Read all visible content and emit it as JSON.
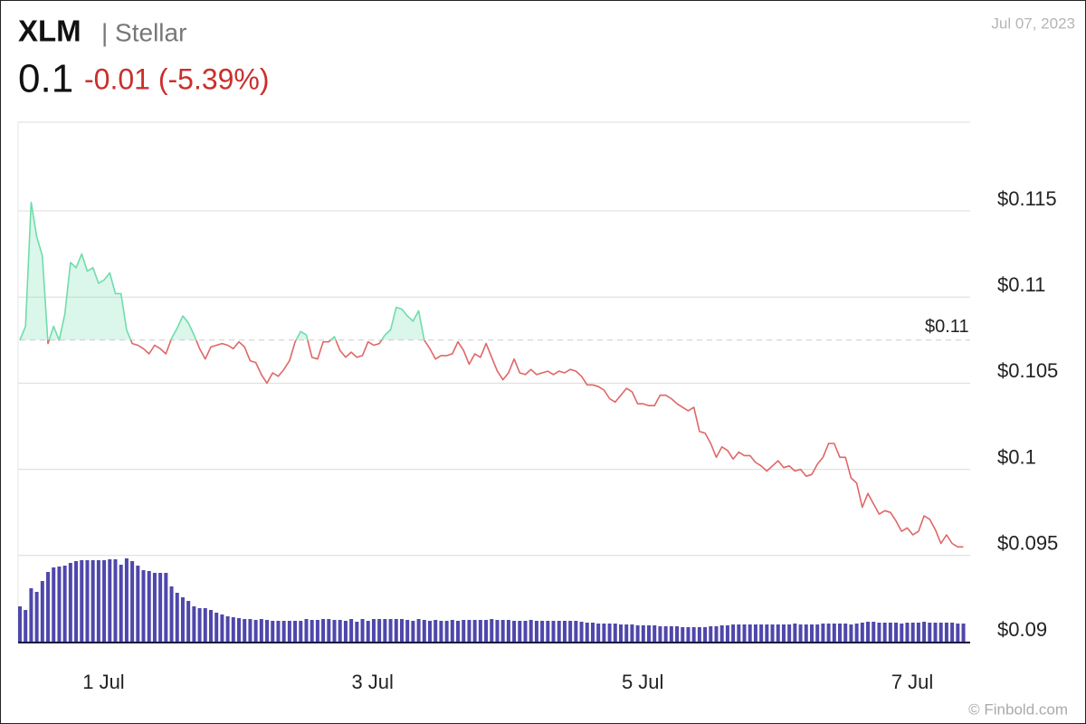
{
  "chart_data": {
    "type": "line",
    "title": "XLM",
    "subtitle": "| Stellar",
    "date": "Jul 07, 2023",
    "price": "0.1",
    "change": "-0.01 (-5.39%)",
    "watermark": "© Finbold.com",
    "up_color": "#6fdcab",
    "down_color": "#e06666",
    "volume_color": "#4f47ab",
    "reference": {
      "value": 0.1075,
      "label": "$0.11"
    },
    "ylim": [
      0.09,
      0.1202
    ],
    "yticks": [
      {
        "value": 0.09,
        "label": "$0.09"
      },
      {
        "value": 0.095,
        "label": "$0.095"
      },
      {
        "value": 0.1,
        "label": "$0.1"
      },
      {
        "value": 0.105,
        "label": "$0.105"
      },
      {
        "value": 0.11,
        "label": "$0.11"
      },
      {
        "value": 0.115,
        "label": "$0.115"
      }
    ],
    "xlim": [
      0,
      168.8
    ],
    "xticks": [
      {
        "value": 14.9,
        "label": "1 Jul"
      },
      {
        "value": 62.8,
        "label": "3 Jul"
      },
      {
        "value": 110.9,
        "label": "5 Jul"
      },
      {
        "value": 158.9,
        "label": "7 Jul"
      }
    ],
    "grid": true,
    "values": [
      0.1075,
      0.1083,
      0.1155,
      0.1135,
      0.1124,
      0.1073,
      0.1083,
      0.1075,
      0.109,
      0.112,
      0.1117,
      0.1125,
      0.1115,
      0.1117,
      0.1108,
      0.111,
      0.1114,
      0.1102,
      0.1102,
      0.1081,
      0.1073,
      0.1072,
      0.107,
      0.1067,
      0.1072,
      0.107,
      0.1067,
      0.1076,
      0.1082,
      0.1089,
      0.1085,
      0.1078,
      0.107,
      0.1064,
      0.1071,
      0.1072,
      0.1073,
      0.1072,
      0.107,
      0.1074,
      0.1071,
      0.1063,
      0.1062,
      0.1055,
      0.105,
      0.1056,
      0.1054,
      0.1058,
      0.1063,
      0.1074,
      0.108,
      0.1078,
      0.1065,
      0.1064,
      0.1074,
      0.1074,
      0.1077,
      0.1069,
      0.1065,
      0.1068,
      0.1065,
      0.1066,
      0.1074,
      0.1072,
      0.1073,
      0.1078,
      0.1081,
      0.1094,
      0.1093,
      0.1089,
      0.1086,
      0.1092,
      0.1075,
      0.107,
      0.1064,
      0.1066,
      0.1066,
      0.1067,
      0.1074,
      0.1069,
      0.1061,
      0.1067,
      0.1065,
      0.1073,
      0.1065,
      0.1057,
      0.1052,
      0.1056,
      0.1064,
      0.1056,
      0.1055,
      0.1058,
      0.1055,
      0.1056,
      0.1057,
      0.1055,
      0.1057,
      0.1056,
      0.1058,
      0.1057,
      0.1054,
      0.1049,
      0.1049,
      0.1048,
      0.1046,
      0.1041,
      0.1039,
      0.1043,
      0.1047,
      0.1045,
      0.1038,
      0.1038,
      0.1037,
      0.1037,
      0.1043,
      0.1043,
      0.1041,
      0.1038,
      0.1036,
      0.1034,
      0.1036,
      0.1022,
      0.1021,
      0.1015,
      0.1007,
      0.1013,
      0.1011,
      0.1006,
      0.101,
      0.1008,
      0.1008,
      0.1004,
      0.1002,
      0.0999,
      0.1002,
      0.1005,
      0.1001,
      0.1002,
      0.0999,
      0.1,
      0.0996,
      0.0997,
      0.1003,
      0.1007,
      0.1015,
      0.1015,
      0.1007,
      0.1007,
      0.0995,
      0.0992,
      0.0978,
      0.0986,
      0.098,
      0.0974,
      0.0976,
      0.0975,
      0.097,
      0.0964,
      0.0966,
      0.0962,
      0.0964,
      0.0973,
      0.0971,
      0.0965,
      0.0957,
      0.0962,
      0.0957,
      0.0955,
      0.0955
    ],
    "volume_lim": [
      0,
      100
    ],
    "volume": [
      40,
      36,
      60,
      56,
      68,
      78,
      83,
      84,
      85,
      88,
      90,
      91,
      91,
      91,
      91,
      91,
      92,
      92,
      86,
      93,
      90,
      85,
      80,
      79,
      77,
      77,
      77,
      62,
      55,
      50,
      46,
      40,
      38,
      38,
      36,
      33,
      31,
      29,
      28,
      27,
      26,
      26,
      25,
      26,
      25,
      24,
      24,
      24,
      24,
      24,
      24,
      26,
      25,
      25,
      26,
      26,
      25,
      25,
      24,
      26,
      23,
      26,
      24,
      26,
      26,
      26,
      26,
      26,
      26,
      25,
      24,
      26,
      25,
      24,
      25,
      24,
      24,
      25,
      24,
      25,
      25,
      25,
      25,
      25,
      26,
      25,
      25,
      25,
      24,
      24,
      24,
      25,
      24,
      24,
      24,
      24,
      24,
      24,
      24,
      24,
      23,
      22,
      22,
      21,
      21,
      21,
      21,
      20,
      20,
      20,
      19,
      19,
      19,
      19,
      18,
      18,
      18,
      18,
      17,
      17,
      17,
      17,
      17,
      18,
      18,
      19,
      19,
      20,
      20,
      20,
      20,
      20,
      20,
      20,
      20,
      20,
      20,
      20,
      21,
      20,
      20,
      20,
      20,
      21,
      21,
      21,
      21,
      21,
      20,
      21,
      22,
      23,
      23,
      22,
      22,
      22,
      22,
      21,
      22,
      22,
      22,
      23,
      22,
      22,
      22,
      22,
      22,
      21,
      21
    ]
  }
}
